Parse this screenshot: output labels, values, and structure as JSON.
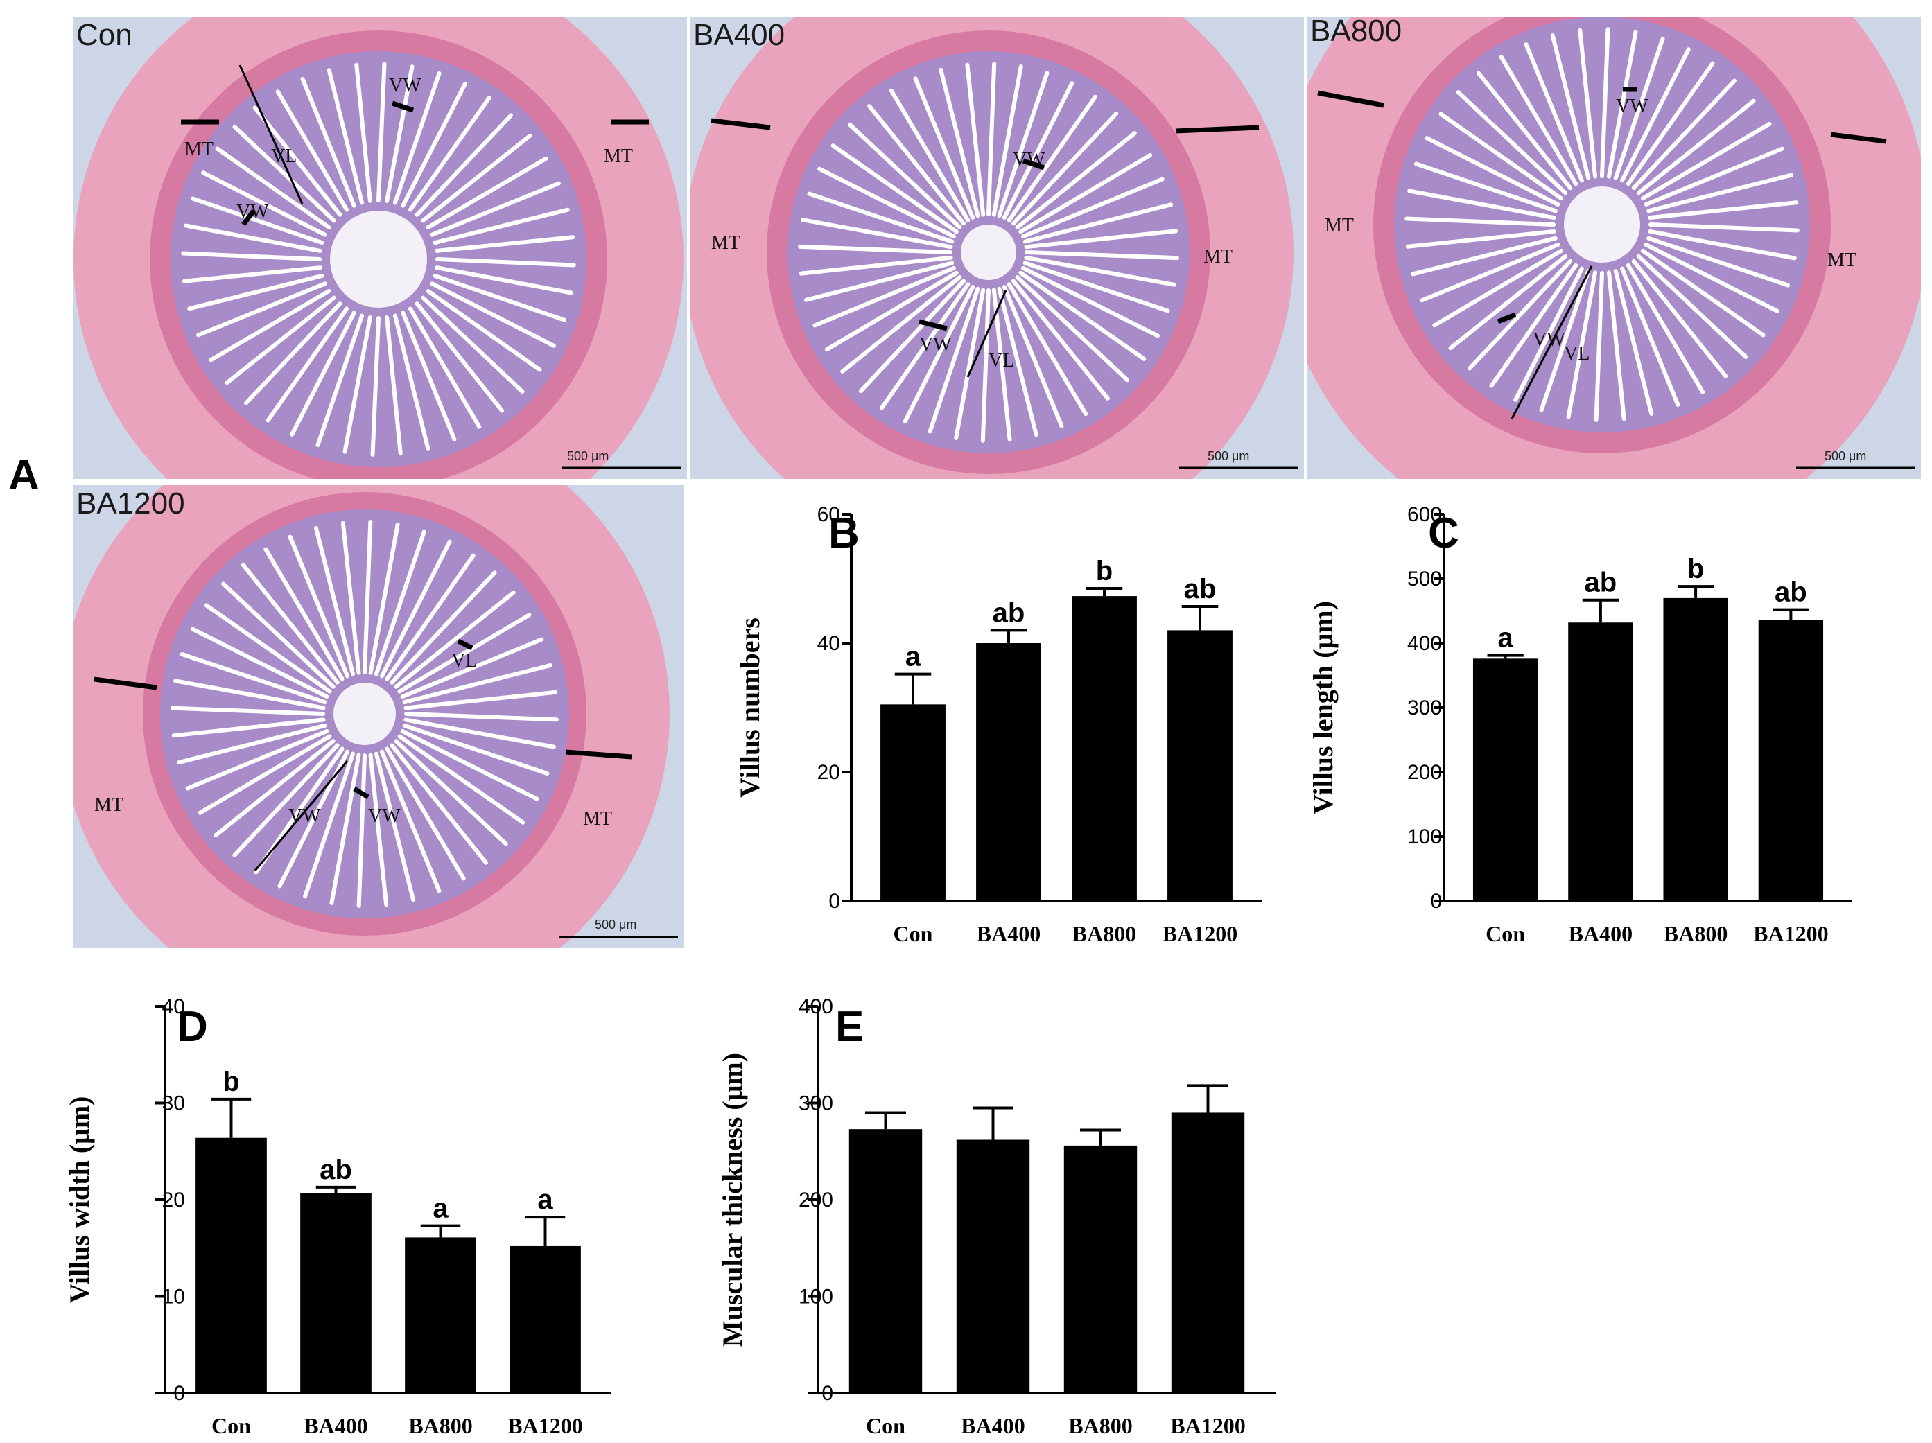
{
  "figure_label": "A",
  "panels_images": [
    {
      "name": "Con",
      "scale": "500 μm",
      "labels": [
        "VL",
        "VW",
        "VW",
        "MT",
        "MT"
      ]
    },
    {
      "name": "BA400",
      "scale": "500 μm",
      "labels": [
        "VW",
        "VW",
        "VL",
        "MT",
        "MT"
      ]
    },
    {
      "name": "BA800",
      "scale": "500 μm",
      "labels": [
        "VW",
        "VW",
        "VL",
        "MT",
        "MT"
      ]
    },
    {
      "name": "BA1200",
      "scale": "500 μm",
      "labels": [
        "VW",
        "VW",
        "VL",
        "MT",
        "MT"
      ]
    }
  ],
  "colors": {
    "bar": "#000000",
    "tissue_outer": "#e9a3bd",
    "tissue_inner": "#a88bc9",
    "background": "#cdd6e6"
  },
  "chart_data": [
    {
      "panel": "B",
      "type": "bar",
      "categories": [
        "Con",
        "BA400",
        "BA800",
        "BA1200"
      ],
      "values": [
        30.5,
        40,
        47.3,
        42
      ],
      "errors": [
        4.7,
        2,
        1.2,
        3.7
      ],
      "significance": [
        "a",
        "ab",
        "b",
        "ab"
      ],
      "ylabel": "Villus numbers",
      "ylim": [
        0,
        60
      ],
      "yticks": [
        0,
        20,
        40,
        60
      ]
    },
    {
      "panel": "C",
      "type": "bar",
      "categories": [
        "Con",
        "BA400",
        "BA800",
        "BA1200"
      ],
      "values": [
        376,
        432,
        470,
        436
      ],
      "errors": [
        5,
        35,
        18,
        16
      ],
      "significance": [
        "a",
        "ab",
        "b",
        "ab"
      ],
      "ylabel": "Villus length (μm)",
      "ylim": [
        0,
        600
      ],
      "yticks": [
        0,
        100,
        200,
        300,
        400,
        500,
        600
      ]
    },
    {
      "panel": "D",
      "type": "bar",
      "categories": [
        "Con",
        "BA400",
        "BA800",
        "BA1200"
      ],
      "values": [
        26.4,
        20.7,
        16.1,
        15.2
      ],
      "errors": [
        4,
        0.6,
        1.2,
        3
      ],
      "significance": [
        "b",
        "ab",
        "a",
        "a"
      ],
      "ylabel": "Villus width (μm)",
      "ylim": [
        0,
        40
      ],
      "yticks": [
        0,
        10,
        20,
        30,
        40
      ]
    },
    {
      "panel": "E",
      "type": "bar",
      "categories": [
        "Con",
        "BA400",
        "BA800",
        "BA1200"
      ],
      "values": [
        273,
        262,
        256,
        290
      ],
      "errors": [
        17,
        33,
        16,
        28
      ],
      "significance": [
        "",
        "",
        "",
        ""
      ],
      "ylabel": "Muscular thickness (μm)",
      "ylim": [
        0,
        400
      ],
      "yticks": [
        0,
        100,
        200,
        300,
        400
      ]
    }
  ]
}
